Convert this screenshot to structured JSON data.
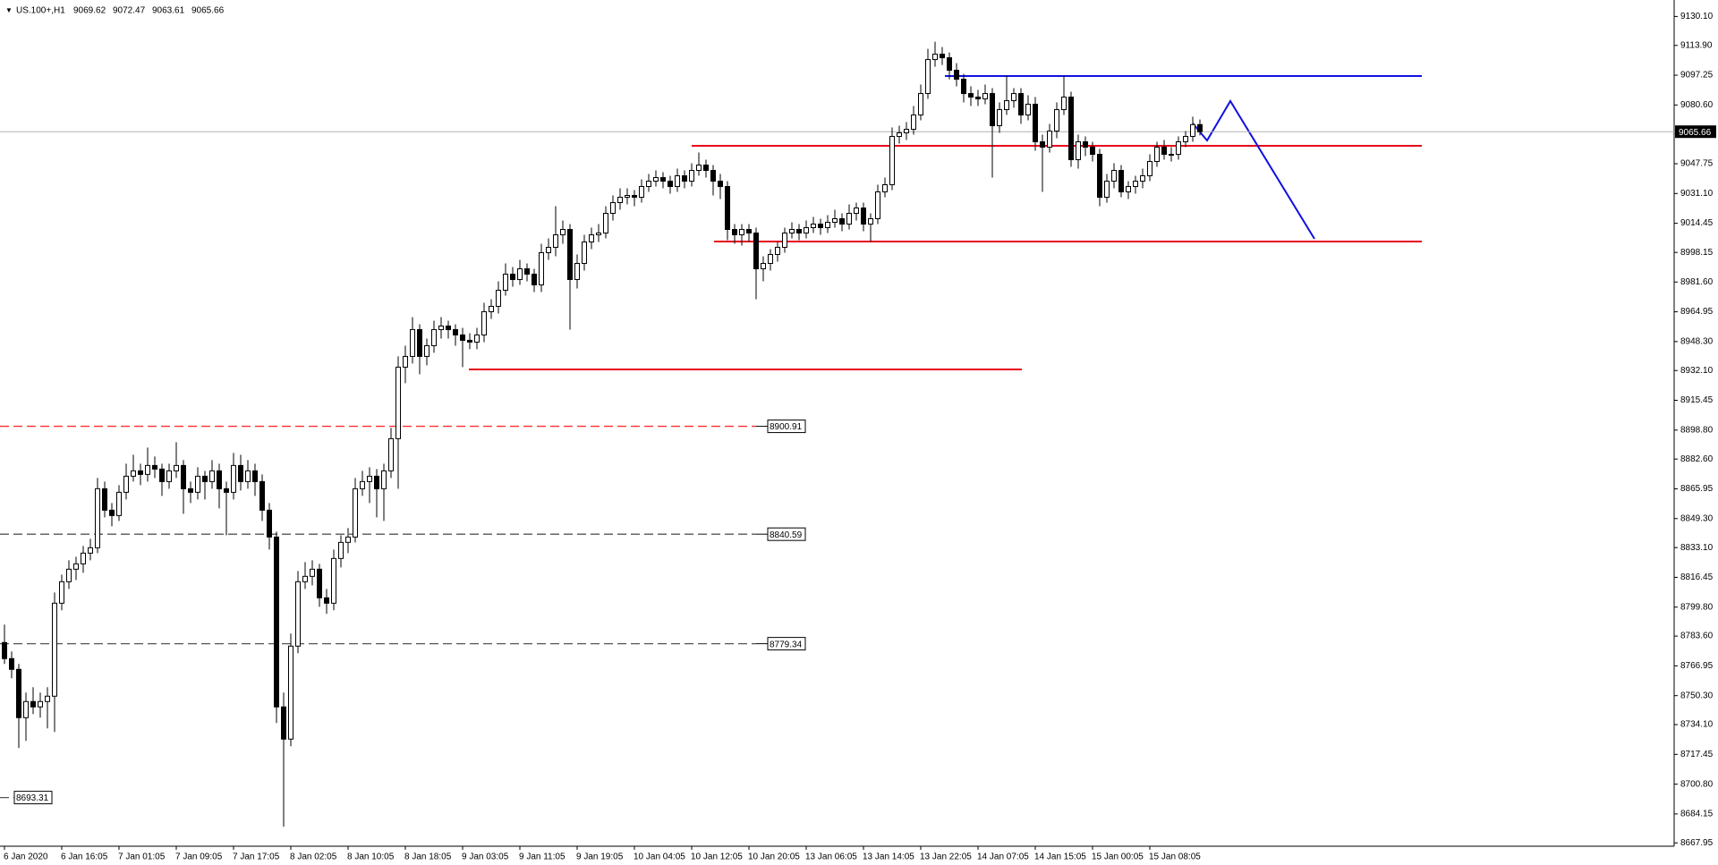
{
  "chart_data": {
    "type": "candlestick",
    "title": "US.100+,H1",
    "categories": [
      "6 Jan 2020",
      null,
      null,
      null,
      null,
      null,
      null,
      null,
      "6 Jan 16:05",
      null,
      null,
      null,
      null,
      null,
      null,
      null,
      "7 Jan 01:05",
      null,
      null,
      null,
      null,
      null,
      null,
      null,
      "7 Jan 09:05",
      null,
      null,
      null,
      null,
      null,
      null,
      null,
      "7 Jan 17:05",
      null,
      null,
      null,
      null,
      null,
      null,
      null,
      "8 Jan 02:05",
      null,
      null,
      null,
      null,
      null,
      null,
      null,
      "8 Jan 10:05",
      null,
      null,
      null,
      null,
      null,
      null,
      null,
      "8 Jan 18:05",
      null,
      null,
      null,
      null,
      null,
      null,
      null,
      "9 Jan 03:05",
      null,
      null,
      null,
      null,
      null,
      null,
      null,
      "9 Jan 11:05",
      null,
      null,
      null,
      null,
      null,
      null,
      null,
      "9 Jan 19:05",
      null,
      null,
      null,
      null,
      null,
      null,
      null,
      "10 Jan 04:05",
      null,
      null,
      null,
      null,
      null,
      null,
      null,
      "10 Jan 12:05",
      null,
      null,
      null,
      null,
      null,
      null,
      null,
      "10 Jan 20:05",
      null,
      null,
      null,
      null,
      null,
      null,
      null,
      "13 Jan 06:05",
      null,
      null,
      null,
      null,
      null,
      null,
      null,
      "13 Jan 14:05",
      null,
      null,
      null,
      null,
      null,
      null,
      null,
      "13 Jan 22:05",
      null,
      null,
      null,
      null,
      null,
      null,
      null,
      "14 Jan 07:05",
      null,
      null,
      null,
      null,
      null,
      null,
      null,
      "14 Jan 15:05",
      null,
      null,
      null,
      null,
      null,
      null,
      null,
      "15 Jan 00:05",
      null,
      null,
      null,
      null,
      null,
      null,
      null,
      "15 Jan 08:05",
      null,
      null,
      null,
      null,
      null,
      null,
      null
    ],
    "candles": [
      [
        8780,
        8790,
        8768,
        8771
      ],
      [
        8771,
        8775,
        8760,
        8765
      ],
      [
        8765,
        8768,
        8721,
        8738
      ],
      [
        8738,
        8752,
        8725,
        8747
      ],
      [
        8747,
        8755,
        8740,
        8744
      ],
      [
        8744,
        8752,
        8738,
        8747
      ],
      [
        8747,
        8755,
        8732,
        8750
      ],
      [
        8750,
        8808,
        8730,
        8802
      ],
      [
        8802,
        8818,
        8798,
        8814
      ],
      [
        8814,
        8826,
        8810,
        8821
      ],
      [
        8821,
        8828,
        8815,
        8824
      ],
      [
        8824,
        8834,
        8819,
        8830
      ],
      [
        8830,
        8838,
        8826,
        8833
      ],
      [
        8833,
        8872,
        8830,
        8866
      ],
      [
        8866,
        8870,
        8850,
        8854
      ],
      [
        8854,
        8858,
        8845,
        8851
      ],
      [
        8851,
        8868,
        8848,
        8864
      ],
      [
        8864,
        8880,
        8860,
        8873
      ],
      [
        8873,
        8885,
        8870,
        8876
      ],
      [
        8876,
        8880,
        8868,
        8874
      ],
      [
        8874,
        8889,
        8870,
        8879
      ],
      [
        8879,
        8884,
        8872,
        8877
      ],
      [
        8877,
        8880,
        8862,
        8870
      ],
      [
        8870,
        8880,
        8866,
        8876
      ],
      [
        8876,
        8892,
        8872,
        8879
      ],
      [
        8879,
        8882,
        8852,
        8866
      ],
      [
        8866,
        8870,
        8858,
        8864
      ],
      [
        8864,
        8878,
        8860,
        8873
      ],
      [
        8873,
        8876,
        8860,
        8870
      ],
      [
        8870,
        8882,
        8866,
        8876
      ],
      [
        8876,
        8880,
        8855,
        8866
      ],
      [
        8866,
        8870,
        8840,
        8864
      ],
      [
        8864,
        8886,
        8860,
        8879
      ],
      [
        8879,
        8885,
        8865,
        8870
      ],
      [
        8870,
        8882,
        8866,
        8876
      ],
      [
        8876,
        8880,
        8862,
        8870
      ],
      [
        8870,
        8874,
        8848,
        8854
      ],
      [
        8854,
        8858,
        8832,
        8839
      ],
      [
        8839,
        8842,
        8735,
        8744
      ],
      [
        8744,
        8752,
        8677,
        8726
      ],
      [
        8726,
        8785,
        8722,
        8778
      ],
      [
        8778,
        8820,
        8774,
        8814
      ],
      [
        8814,
        8825,
        8810,
        8817
      ],
      [
        8817,
        8826,
        8812,
        8821
      ],
      [
        8821,
        8824,
        8800,
        8805
      ],
      [
        8805,
        8810,
        8796,
        8802
      ],
      [
        8802,
        8832,
        8798,
        8827
      ],
      [
        8827,
        8840,
        8822,
        8836
      ],
      [
        8836,
        8844,
        8830,
        8839
      ],
      [
        8839,
        8872,
        8836,
        8866
      ],
      [
        8866,
        8876,
        8862,
        8870
      ],
      [
        8870,
        8878,
        8858,
        8873
      ],
      [
        8873,
        8877,
        8850,
        8866
      ],
      [
        8866,
        8880,
        8848,
        8876
      ],
      [
        8876,
        8900,
        8872,
        8894
      ],
      [
        8894,
        8940,
        8866,
        8934
      ],
      [
        8934,
        8946,
        8925,
        8940
      ],
      [
        8940,
        8962,
        8936,
        8955
      ],
      [
        8955,
        8958,
        8930,
        8940
      ],
      [
        8940,
        8950,
        8935,
        8946
      ],
      [
        8946,
        8960,
        8942,
        8955
      ],
      [
        8955,
        8962,
        8950,
        8957
      ],
      [
        8957,
        8960,
        8950,
        8955
      ],
      [
        8955,
        8958,
        8946,
        8952
      ],
      [
        8952,
        8956,
        8934,
        8949
      ],
      [
        8949,
        8953,
        8944,
        8948
      ],
      [
        8948,
        8956,
        8944,
        8952
      ],
      [
        8952,
        8970,
        8948,
        8965
      ],
      [
        8965,
        8972,
        8961,
        8968
      ],
      [
        8968,
        8982,
        8964,
        8977
      ],
      [
        8977,
        8992,
        8974,
        8986
      ],
      [
        8986,
        8990,
        8979,
        8983
      ],
      [
        8983,
        8994,
        8980,
        8989
      ],
      [
        8989,
        8992,
        8982,
        8986
      ],
      [
        8986,
        8989,
        8976,
        8980
      ],
      [
        8980,
        9003,
        8976,
        8998
      ],
      [
        8998,
        9006,
        8994,
        9001
      ],
      [
        9001,
        9024,
        8996,
        9008
      ],
      [
        9008,
        9016,
        9003,
        9011
      ],
      [
        9011,
        9014,
        8955,
        8983
      ],
      [
        8983,
        8997,
        8978,
        8992
      ],
      [
        8992,
        9008,
        8988,
        9004
      ],
      [
        9004,
        9012,
        9000,
        9008
      ],
      [
        9008,
        9014,
        9004,
        9009
      ],
      [
        9009,
        9024,
        9006,
        9020
      ],
      [
        9020,
        9030,
        9016,
        9026
      ],
      [
        9026,
        9034,
        9022,
        9029
      ],
      [
        9029,
        9034,
        9025,
        9030
      ],
      [
        9030,
        9033,
        9024,
        9029
      ],
      [
        9029,
        9039,
        9026,
        9035
      ],
      [
        9035,
        9042,
        9032,
        9038
      ],
      [
        9038,
        9044,
        9035,
        9040
      ],
      [
        9040,
        9043,
        9034,
        9038
      ],
      [
        9038,
        9041,
        9031,
        9035
      ],
      [
        9035,
        9045,
        9032,
        9041
      ],
      [
        9041,
        9044,
        9034,
        9038
      ],
      [
        9038,
        9048,
        9035,
        9044
      ],
      [
        9044,
        9054,
        9041,
        9047
      ],
      [
        9047,
        9050,
        9040,
        9044
      ],
      [
        9044,
        9047,
        9030,
        9038
      ],
      [
        9038,
        9042,
        9028,
        9035
      ],
      [
        9035,
        9038,
        9005,
        9011
      ],
      [
        9011,
        9014,
        9003,
        9008
      ],
      [
        9008,
        9014,
        9002,
        9011
      ],
      [
        9011,
        9014,
        9004,
        9009
      ],
      [
        9009,
        9012,
        8972,
        8989
      ],
      [
        8989,
        8996,
        8982,
        8992
      ],
      [
        8992,
        9000,
        8988,
        8997
      ],
      [
        8997,
        9004,
        8993,
        9001
      ],
      [
        9001,
        9012,
        8998,
        9009
      ],
      [
        9009,
        9015,
        9006,
        9011
      ],
      [
        9011,
        9014,
        9005,
        9009
      ],
      [
        9009,
        9016,
        9006,
        9012
      ],
      [
        9012,
        9018,
        9009,
        9014
      ],
      [
        9014,
        9017,
        9008,
        9012
      ],
      [
        9012,
        9019,
        9009,
        9015
      ],
      [
        9015,
        9022,
        9012,
        9017
      ],
      [
        9017,
        9020,
        9010,
        9014
      ],
      [
        9014,
        9025,
        9011,
        9020
      ],
      [
        9020,
        9026,
        9016,
        9023
      ],
      [
        9023,
        9026,
        9010,
        9014
      ],
      [
        9014,
        9020,
        9004,
        9017
      ],
      [
        9017,
        9036,
        9014,
        9032
      ],
      [
        9032,
        9040,
        9029,
        9036
      ],
      [
        9036,
        9068,
        9033,
        9063
      ],
      [
        9063,
        9069,
        9059,
        9065
      ],
      [
        9065,
        9071,
        9061,
        9067
      ],
      [
        9067,
        9080,
        9064,
        9075
      ],
      [
        9075,
        9092,
        9072,
        9087
      ],
      [
        9087,
        9112,
        9084,
        9106
      ],
      [
        9106,
        9116,
        9102,
        9109
      ],
      [
        9109,
        9113,
        9103,
        9107
      ],
      [
        9107,
        9110,
        9095,
        9100
      ],
      [
        9100,
        9104,
        9091,
        9095
      ],
      [
        9095,
        9098,
        9082,
        9087
      ],
      [
        9087,
        9091,
        9080,
        9085
      ],
      [
        9085,
        9089,
        9080,
        9084
      ],
      [
        9084,
        9092,
        9081,
        9087
      ],
      [
        9087,
        9090,
        9040,
        9069
      ],
      [
        9069,
        9082,
        9065,
        9078
      ],
      [
        9078,
        9097,
        9075,
        9083
      ],
      [
        9083,
        9090,
        9079,
        9087
      ],
      [
        9087,
        9090,
        9070,
        9075
      ],
      [
        9075,
        9086,
        9072,
        9081
      ],
      [
        9081,
        9085,
        9055,
        9060
      ],
      [
        9060,
        9064,
        9032,
        9057
      ],
      [
        9057,
        9070,
        9054,
        9066
      ],
      [
        9066,
        9082,
        9062,
        9078
      ],
      [
        9078,
        9097,
        9075,
        9085
      ],
      [
        9085,
        9088,
        9046,
        9050
      ],
      [
        9050,
        9064,
        9045,
        9060
      ],
      [
        9060,
        9063,
        9052,
        9057
      ],
      [
        9057,
        9060,
        9049,
        9053
      ],
      [
        9053,
        9056,
        9024,
        9029
      ],
      [
        9029,
        9042,
        9026,
        9038
      ],
      [
        9038,
        9048,
        9034,
        9044
      ],
      [
        9044,
        9047,
        9029,
        9032
      ],
      [
        9032,
        9038,
        9028,
        9035
      ],
      [
        9035,
        9041,
        9031,
        9038
      ],
      [
        9038,
        9045,
        9034,
        9041
      ],
      [
        9041,
        9053,
        9038,
        9049
      ],
      [
        9049,
        9060,
        9046,
        9057
      ],
      [
        9057,
        9061,
        9050,
        9053
      ],
      [
        9053,
        9057,
        9049,
        9053
      ],
      [
        9053,
        9063,
        9050,
        9060
      ],
      [
        9060,
        9066,
        9057,
        9063
      ],
      [
        9063,
        9074,
        9060,
        9069.62
      ],
      [
        9069.62,
        9072.47,
        9063.61,
        9065.66
      ]
    ],
    "ylim": [
      8666.1,
      9136.3
    ],
    "yticks": [
      {
        "value": 9130.1,
        "label": "9130.10"
      },
      {
        "value": 9113.9,
        "label": "9113.90"
      },
      {
        "value": 9097.25,
        "label": "9097.25"
      },
      {
        "value": 9080.6,
        "label": "9080.60"
      },
      {
        "value": 9047.75,
        "label": "9047.75"
      },
      {
        "value": 9031.1,
        "label": "9031.10"
      },
      {
        "value": 9014.45,
        "label": "9014.45"
      },
      {
        "value": 8998.15,
        "label": "8998.15"
      },
      {
        "value": 8981.6,
        "label": "8981.60"
      },
      {
        "value": 8964.95,
        "label": "8964.95"
      },
      {
        "value": 8948.3,
        "label": "8948.30"
      },
      {
        "value": 8932.1,
        "label": "8932.10"
      },
      {
        "value": 8915.45,
        "label": "8915.45"
      },
      {
        "value": 8898.8,
        "label": "8898.80"
      },
      {
        "value": 8882.6,
        "label": "8882.60"
      },
      {
        "value": 8865.95,
        "label": "8865.95"
      },
      {
        "value": 8849.3,
        "label": "8849.30"
      },
      {
        "value": 8833.1,
        "label": "8833.10"
      },
      {
        "value": 8816.45,
        "label": "8816.45"
      },
      {
        "value": 8799.8,
        "label": "8799.80"
      },
      {
        "value": 8783.6,
        "label": "8783.60"
      },
      {
        "value": 8766.95,
        "label": "8766.95"
      },
      {
        "value": 8750.3,
        "label": "8750.30"
      },
      {
        "value": 8734.1,
        "label": "8734.10"
      },
      {
        "value": 8717.45,
        "label": "8717.45"
      },
      {
        "value": 8700.8,
        "label": "8700.80"
      },
      {
        "value": 8684.15,
        "label": "8684.15"
      },
      {
        "value": 8667.95,
        "label": "8667.95"
      }
    ],
    "levels": [
      {
        "value": 8900.91,
        "color": "#ff3030"
      },
      {
        "value": 8840.59,
        "color": "#555555"
      },
      {
        "value": 8779.34,
        "color": "#555555"
      },
      {
        "value": 8693.31,
        "color": "#555555"
      }
    ],
    "up_color": "#ffffff",
    "down_color": "#000000",
    "grid": false
  }
}
